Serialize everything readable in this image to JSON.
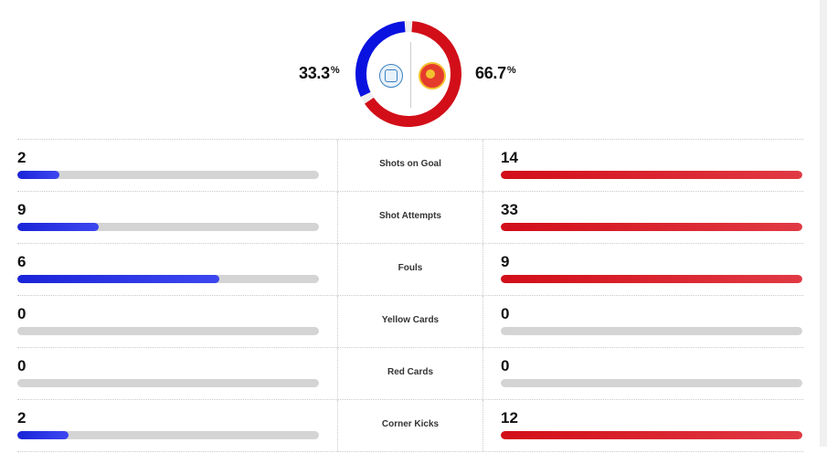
{
  "possession": {
    "home_value": "33.3",
    "away_value": "66.7",
    "unit": "%",
    "home_fraction": 0.333,
    "away_fraction": 0.667,
    "home_color": "#0a12e0",
    "away_color": "#d20e19",
    "home_logo": "wigan-crest-icon",
    "away_logo": "man-united-crest-icon"
  },
  "stats": [
    {
      "label": "Shots on Goal",
      "home": "2",
      "away": "14",
      "home_fill": 0.14,
      "away_fill": 1.0
    },
    {
      "label": "Shot Attempts",
      "home": "9",
      "away": "33",
      "home_fill": 0.27,
      "away_fill": 1.0
    },
    {
      "label": "Fouls",
      "home": "6",
      "away": "9",
      "home_fill": 0.67,
      "away_fill": 1.0
    },
    {
      "label": "Yellow Cards",
      "home": "0",
      "away": "0",
      "home_fill": 0,
      "away_fill": 0
    },
    {
      "label": "Red Cards",
      "home": "0",
      "away": "0",
      "home_fill": 0,
      "away_fill": 0
    },
    {
      "label": "Corner Kicks",
      "home": "2",
      "away": "12",
      "home_fill": 0.17,
      "away_fill": 1.0
    }
  ]
}
